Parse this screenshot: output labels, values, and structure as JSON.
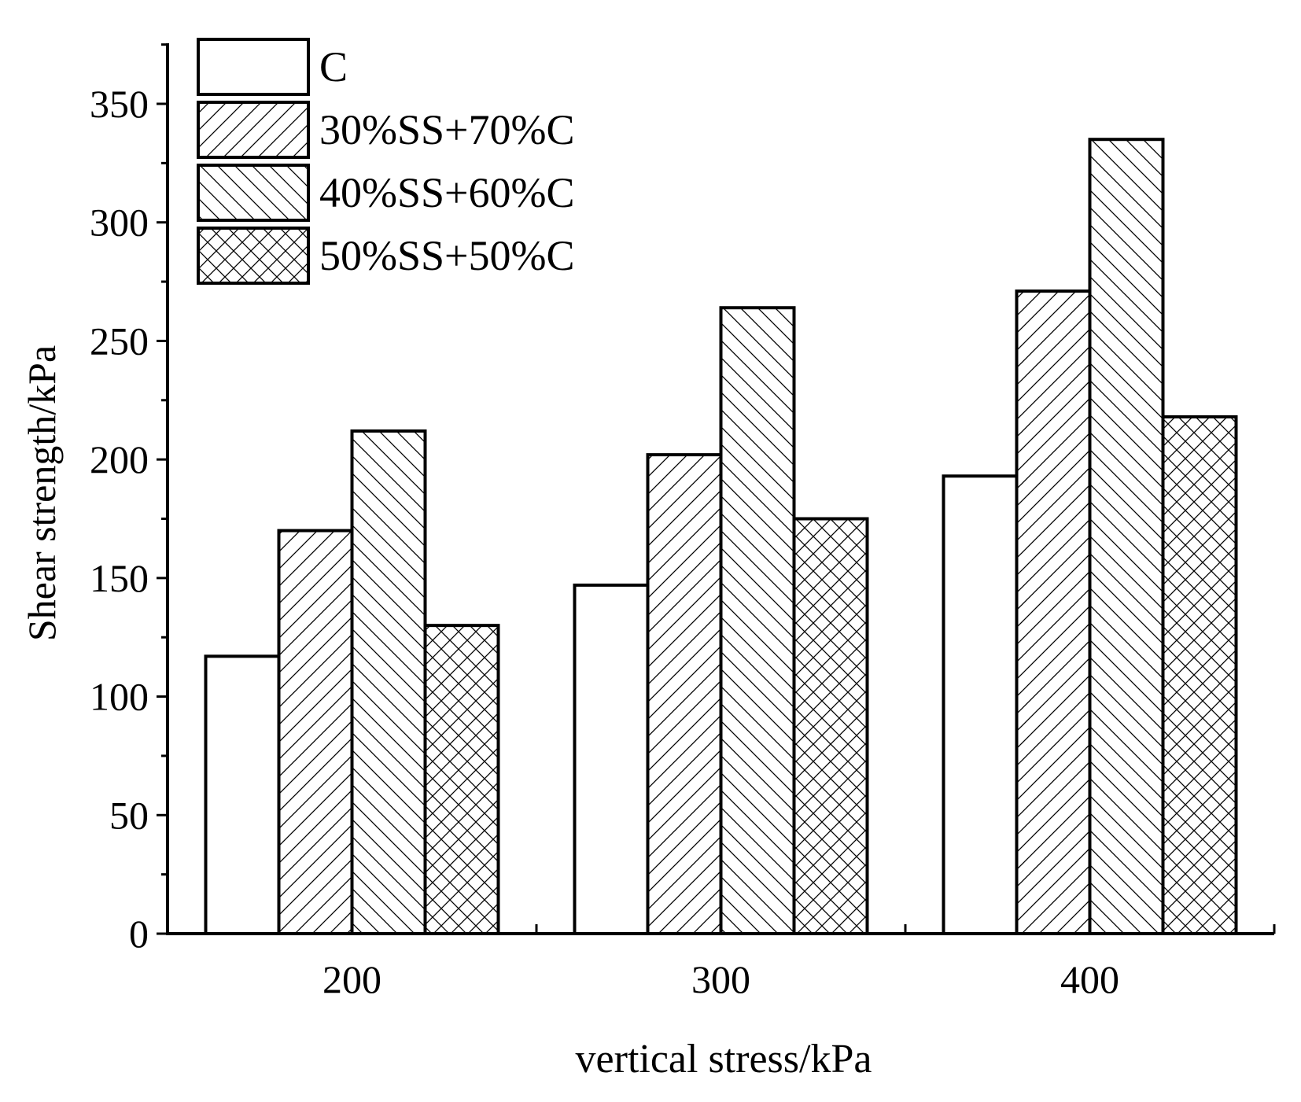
{
  "chart_data": {
    "type": "bar",
    "title": "",
    "xlabel": "vertical stress/kPa",
    "ylabel": "Shear strength/kPa",
    "categories": [
      "200",
      "300",
      "400"
    ],
    "ylim": [
      0,
      375
    ],
    "yticks": [
      0,
      50,
      100,
      150,
      200,
      250,
      300,
      350
    ],
    "grid": false,
    "legend_position": "top-left",
    "series": [
      {
        "name": "C",
        "pattern": "none",
        "values": [
          117,
          147,
          193
        ]
      },
      {
        "name": "30%SS+70%C",
        "pattern": "forward-diagonal",
        "values": [
          170,
          202,
          271
        ]
      },
      {
        "name": "40%SS+60%C",
        "pattern": "backward-diagonal",
        "values": [
          212,
          264,
          335
        ]
      },
      {
        "name": "50%SS+50%C",
        "pattern": "crosshatch",
        "values": [
          130,
          175,
          218
        ]
      }
    ],
    "colors": {
      "stroke": "#000000",
      "fill": "#ffffff"
    }
  }
}
